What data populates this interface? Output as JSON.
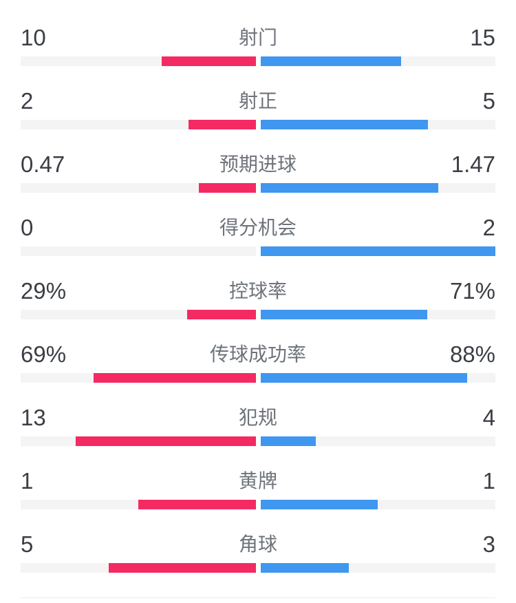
{
  "panel": {
    "background": "#ffffff",
    "track_color": "#f4f4f5",
    "value_text_color": "#3b3e44",
    "label_text_color": "#6e737a",
    "divider_color": "#ececec"
  },
  "chart_data": {
    "type": "bar",
    "orientation": "horizontal-diverging",
    "title": "",
    "legend_position": "none",
    "grid": false,
    "categories": [
      "射门",
      "射正",
      "预期进球",
      "得分机会",
      "控球率",
      "传球成功率",
      "犯规",
      "黄牌",
      "角球"
    ],
    "series": [
      {
        "name": "home-team-left",
        "color": "#f42a63",
        "values": [
          10,
          2,
          0.47,
          0,
          29,
          69,
          13,
          1,
          5
        ],
        "labels": [
          "10",
          "2",
          "0.47",
          "0",
          "29%",
          "69%",
          "13",
          "1",
          "5"
        ]
      },
      {
        "name": "away-team-right",
        "color": "#3f97f0",
        "values": [
          15,
          5,
          1.47,
          2,
          71,
          88,
          4,
          1,
          3
        ],
        "labels": [
          "15",
          "5",
          "1.47",
          "2",
          "71%",
          "88%",
          "4",
          "1",
          "3"
        ]
      }
    ],
    "bar_scale_rule": "percent stats: width = value/100 of half track; count stats: width = value/(left+right) of half track"
  }
}
